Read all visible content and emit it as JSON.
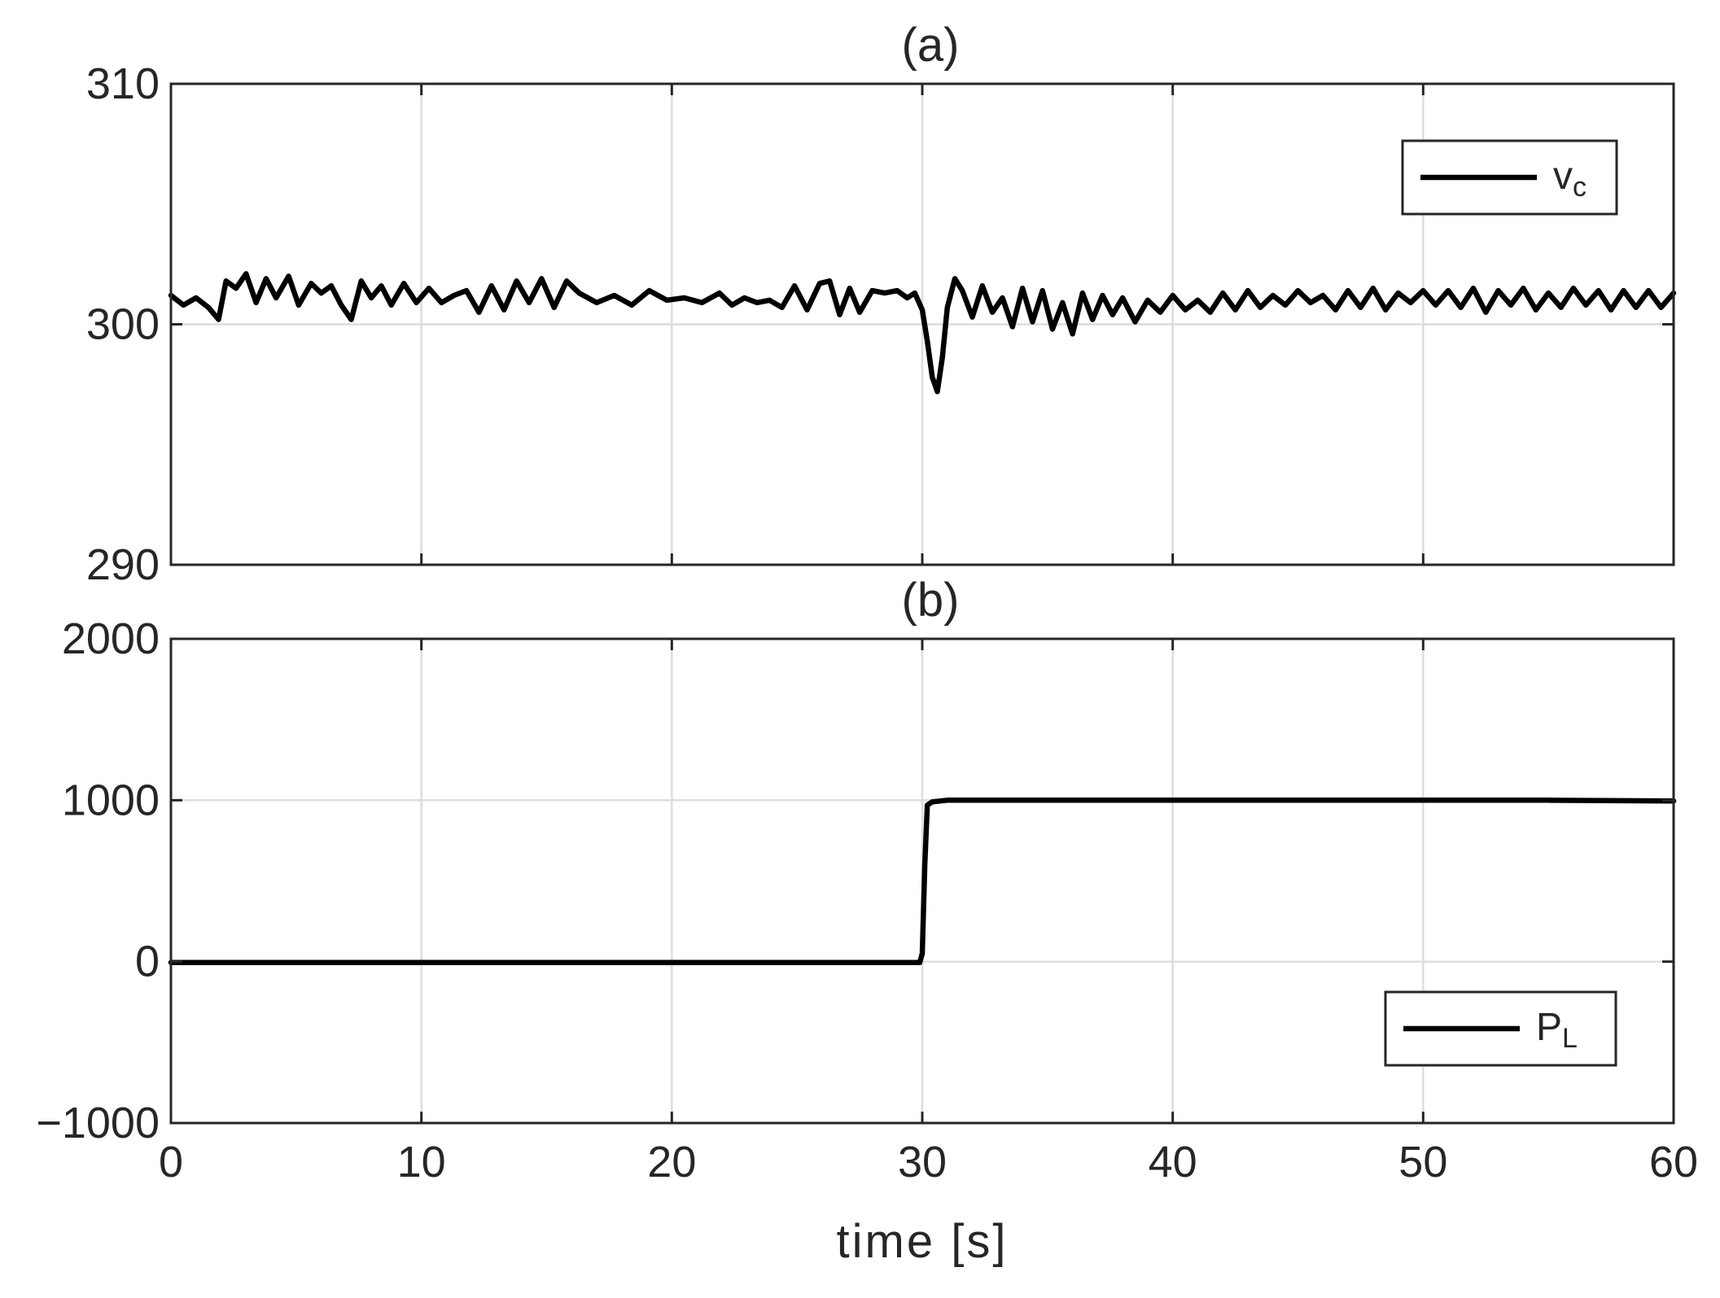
{
  "chart_data": [
    {
      "type": "line",
      "title": "(a)",
      "xlabel": "",
      "ylabel": "",
      "xlim": [
        0,
        60
      ],
      "ylim": [
        290,
        310
      ],
      "xticks": [
        0,
        10,
        20,
        30,
        40,
        50,
        60
      ],
      "yticks": [
        290,
        300,
        310
      ],
      "ytick_labels": [
        "290",
        "300",
        "310"
      ],
      "grid": true,
      "legend_position": "top-right",
      "series": [
        {
          "name": "v",
          "name_subscript": "c",
          "color": "#000000",
          "x": [
            0,
            0.5,
            1,
            1.5,
            1.9,
            2.2,
            2.6,
            3.0,
            3.4,
            3.8,
            4.2,
            4.7,
            5.1,
            5.6,
            6.0,
            6.4,
            6.8,
            7.2,
            7.6,
            8.0,
            8.4,
            8.8,
            9.3,
            9.8,
            10.3,
            10.8,
            11.3,
            11.8,
            12.3,
            12.8,
            13.3,
            13.8,
            14.3,
            14.8,
            15.3,
            15.8,
            16.3,
            17,
            17.7,
            18.4,
            19.1,
            19.8,
            20.5,
            21.2,
            21.9,
            22.4,
            22.9,
            23.4,
            23.9,
            24.4,
            24.9,
            25.4,
            25.9,
            26.3,
            26.7,
            27.1,
            27.5,
            28.0,
            28.5,
            29.0,
            29.4,
            29.7,
            30.0,
            30.2,
            30.4,
            30.6,
            30.8,
            31.0,
            31.3,
            31.6,
            32.0,
            32.4,
            32.8,
            33.2,
            33.6,
            34.0,
            34.4,
            34.8,
            35.2,
            35.6,
            36.0,
            36.4,
            36.8,
            37.2,
            37.6,
            38.0,
            38.5,
            39.0,
            39.5,
            40.0,
            40.5,
            41.0,
            41.5,
            42.0,
            42.5,
            43.0,
            43.5,
            44.0,
            44.5,
            45.0,
            45.5,
            46.0,
            46.5,
            47.0,
            47.5,
            48.0,
            48.5,
            49.0,
            49.5,
            50.0,
            50.5,
            51.0,
            51.5,
            52.0,
            52.5,
            53.0,
            53.5,
            54.0,
            54.5,
            55.0,
            55.5,
            56.0,
            56.5,
            57.0,
            57.5,
            58.0,
            58.5,
            59.0,
            59.5,
            60.0
          ],
          "y": [
            301.2,
            300.8,
            301.1,
            300.7,
            300.2,
            301.8,
            301.5,
            302.1,
            300.9,
            301.9,
            301.1,
            302.0,
            300.8,
            301.7,
            301.3,
            301.6,
            300.8,
            300.2,
            301.8,
            301.1,
            301.6,
            300.8,
            301.7,
            300.9,
            301.5,
            300.9,
            301.2,
            301.4,
            300.5,
            301.6,
            300.6,
            301.8,
            300.9,
            301.9,
            300.7,
            301.8,
            301.3,
            300.9,
            301.2,
            300.8,
            301.4,
            301.0,
            301.1,
            300.9,
            301.3,
            300.8,
            301.1,
            300.9,
            301.0,
            300.7,
            301.6,
            300.6,
            301.7,
            301.8,
            300.4,
            301.5,
            300.5,
            301.4,
            301.3,
            301.4,
            301.1,
            301.3,
            300.6,
            299.3,
            297.8,
            297.2,
            298.6,
            300.7,
            301.9,
            301.4,
            300.3,
            301.6,
            300.5,
            301.1,
            299.9,
            301.5,
            300.1,
            301.4,
            299.8,
            300.9,
            299.6,
            301.3,
            300.2,
            301.2,
            300.4,
            301.1,
            300.1,
            301.0,
            300.5,
            301.2,
            300.6,
            301.0,
            300.5,
            301.3,
            300.6,
            301.4,
            300.7,
            301.2,
            300.8,
            301.4,
            300.9,
            301.2,
            300.6,
            301.4,
            300.7,
            301.5,
            300.6,
            301.3,
            300.9,
            301.4,
            300.8,
            301.4,
            300.7,
            301.5,
            300.5,
            301.4,
            300.8,
            301.5,
            300.6,
            301.3,
            300.7,
            301.5,
            300.8,
            301.4,
            300.6,
            301.4,
            300.7,
            301.4,
            300.7,
            301.3
          ]
        }
      ]
    },
    {
      "type": "line",
      "title": "(b)",
      "xlabel": "time [s]",
      "ylabel": "",
      "xlim": [
        0,
        60
      ],
      "ylim": [
        -1000,
        2000
      ],
      "xticks": [
        0,
        10,
        20,
        30,
        40,
        50,
        60
      ],
      "xtick_labels": [
        "0",
        "10",
        "20",
        "30",
        "40",
        "50",
        "60"
      ],
      "yticks": [
        -1000,
        0,
        1000,
        2000
      ],
      "ytick_labels": [
        "−1000",
        "0",
        "1000",
        "2000"
      ],
      "grid": true,
      "legend_position": "bottom-right",
      "series": [
        {
          "name": "P",
          "name_subscript": "L",
          "color": "#000000",
          "x": [
            0,
            5,
            10,
            15,
            20,
            25,
            29.9,
            30.0,
            30.1,
            30.2,
            30.4,
            31,
            35,
            40,
            45,
            50,
            55,
            60
          ],
          "y": [
            -5,
            -5,
            -5,
            -5,
            -5,
            -5,
            -5,
            50,
            600,
            970,
            990,
            1000,
            1000,
            1000,
            1000,
            1000,
            1000,
            995
          ]
        }
      ]
    }
  ]
}
